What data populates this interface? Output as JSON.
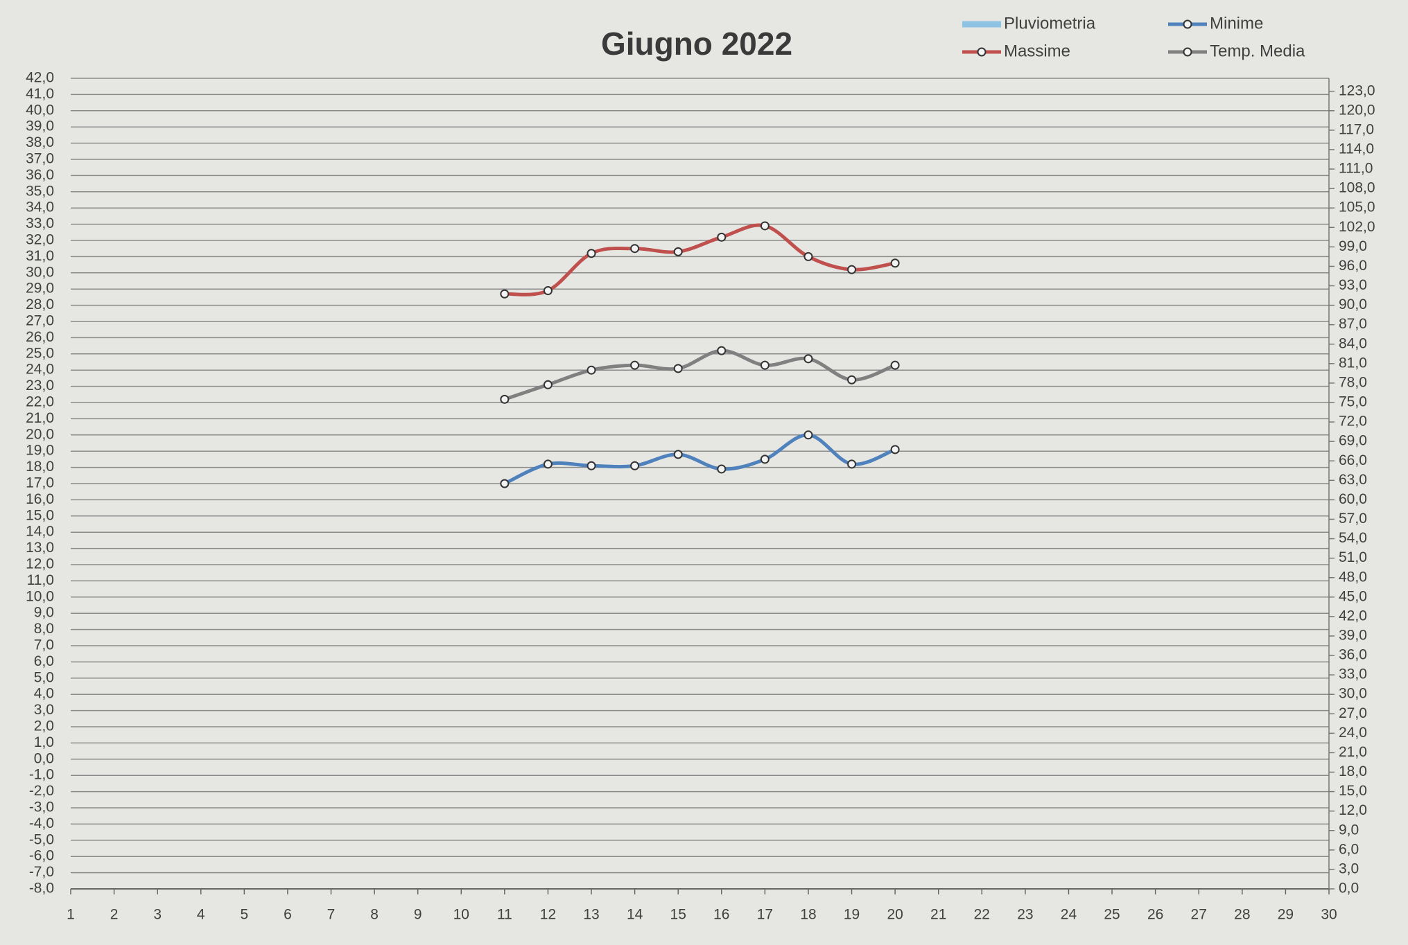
{
  "chart_data": {
    "type": "line",
    "title": "Giugno 2022",
    "categories": [
      1,
      2,
      3,
      4,
      5,
      6,
      7,
      8,
      9,
      10,
      11,
      12,
      13,
      14,
      15,
      16,
      17,
      18,
      19,
      20,
      21,
      22,
      23,
      24,
      25,
      26,
      27,
      28,
      29,
      30
    ],
    "series": [
      {
        "name": "Pluviometria",
        "color": "#8fc3e3",
        "axis": "y2",
        "marker": false,
        "values": [
          null,
          null,
          null,
          null,
          null,
          null,
          null,
          null,
          null,
          null,
          null,
          null,
          null,
          null,
          null,
          null,
          null,
          null,
          null,
          null,
          null,
          null,
          null,
          null,
          null,
          null,
          null,
          null,
          null,
          null
        ]
      },
      {
        "name": "Minime",
        "color": "#4f81bd",
        "marker": true,
        "values": [
          null,
          null,
          null,
          null,
          null,
          null,
          null,
          null,
          null,
          null,
          17.0,
          18.2,
          18.1,
          18.1,
          18.8,
          17.9,
          18.5,
          20.0,
          18.2,
          19.1,
          null,
          null,
          null,
          null,
          null,
          null,
          null,
          null,
          null,
          null
        ]
      },
      {
        "name": "Massime",
        "color": "#c0504d",
        "marker": true,
        "values": [
          null,
          null,
          null,
          null,
          null,
          null,
          null,
          null,
          null,
          null,
          28.7,
          28.9,
          31.2,
          31.5,
          31.3,
          32.2,
          32.9,
          31.0,
          30.2,
          30.6,
          null,
          null,
          null,
          null,
          null,
          null,
          null,
          null,
          null,
          null
        ]
      },
      {
        "name": "Temp. Media",
        "color": "#808080",
        "marker": true,
        "values": [
          null,
          null,
          null,
          null,
          null,
          null,
          null,
          null,
          null,
          null,
          22.2,
          23.1,
          24.0,
          24.3,
          24.1,
          25.2,
          24.3,
          24.7,
          23.4,
          24.3,
          null,
          null,
          null,
          null,
          null,
          null,
          null,
          null,
          null,
          null
        ]
      }
    ],
    "ylim": [
      -8,
      42
    ],
    "yticks": [
      {
        "value": -8,
        "label": "-8,0"
      },
      {
        "value": -7,
        "label": "-7,0"
      },
      {
        "value": -6,
        "label": "-6,0"
      },
      {
        "value": -5,
        "label": "-5,0"
      },
      {
        "value": -4,
        "label": "-4,0"
      },
      {
        "value": -3,
        "label": "-3,0"
      },
      {
        "value": -2,
        "label": "-2,0"
      },
      {
        "value": -1,
        "label": "-1,0"
      },
      {
        "value": 0,
        "label": "0,0"
      },
      {
        "value": 1,
        "label": "1,0"
      },
      {
        "value": 2,
        "label": "2,0"
      },
      {
        "value": 3,
        "label": "3,0"
      },
      {
        "value": 4,
        "label": "4,0"
      },
      {
        "value": 5,
        "label": "5,0"
      },
      {
        "value": 6,
        "label": "6,0"
      },
      {
        "value": 7,
        "label": "7,0"
      },
      {
        "value": 8,
        "label": "8,0"
      },
      {
        "value": 9,
        "label": "9,0"
      },
      {
        "value": 10,
        "label": "10,0"
      },
      {
        "value": 11,
        "label": "11,0"
      },
      {
        "value": 12,
        "label": "12,0"
      },
      {
        "value": 13,
        "label": "13,0"
      },
      {
        "value": 14,
        "label": "14,0"
      },
      {
        "value": 15,
        "label": "15,0"
      },
      {
        "value": 16,
        "label": "16,0"
      },
      {
        "value": 17,
        "label": "17,0"
      },
      {
        "value": 18,
        "label": "18,0"
      },
      {
        "value": 19,
        "label": "19,0"
      },
      {
        "value": 20,
        "label": "20,0"
      },
      {
        "value": 21,
        "label": "21,0"
      },
      {
        "value": 22,
        "label": "22,0"
      },
      {
        "value": 23,
        "label": "23,0"
      },
      {
        "value": 24,
        "label": "24,0"
      },
      {
        "value": 25,
        "label": "25,0"
      },
      {
        "value": 26,
        "label": "26,0"
      },
      {
        "value": 27,
        "label": "27,0"
      },
      {
        "value": 28,
        "label": "28,0"
      },
      {
        "value": 29,
        "label": "29,0"
      },
      {
        "value": 30,
        "label": "30,0"
      },
      {
        "value": 31,
        "label": "31,0"
      },
      {
        "value": 32,
        "label": "32,0"
      },
      {
        "value": 33,
        "label": "33,0"
      },
      {
        "value": 34,
        "label": "34,0"
      },
      {
        "value": 35,
        "label": "35,0"
      },
      {
        "value": 36,
        "label": "36,0"
      },
      {
        "value": 37,
        "label": "37,0"
      },
      {
        "value": 38,
        "label": "38,0"
      },
      {
        "value": 39,
        "label": "39,0"
      },
      {
        "value": 40,
        "label": "40,0"
      },
      {
        "value": 41,
        "label": "41,0"
      },
      {
        "value": 42,
        "label": "42,0"
      }
    ],
    "y2lim": [
      0,
      125
    ],
    "y2ticks": [
      {
        "value": 0,
        "label": "0,0"
      },
      {
        "value": 3,
        "label": "3,0"
      },
      {
        "value": 6,
        "label": "6,0"
      },
      {
        "value": 9,
        "label": "9,0"
      },
      {
        "value": 12,
        "label": "12,0"
      },
      {
        "value": 15,
        "label": "15,0"
      },
      {
        "value": 18,
        "label": "18,0"
      },
      {
        "value": 21,
        "label": "21,0"
      },
      {
        "value": 24,
        "label": "24,0"
      },
      {
        "value": 27,
        "label": "27,0"
      },
      {
        "value": 30,
        "label": "30,0"
      },
      {
        "value": 33,
        "label": "33,0"
      },
      {
        "value": 36,
        "label": "36,0"
      },
      {
        "value": 39,
        "label": "39,0"
      },
      {
        "value": 42,
        "label": "42,0"
      },
      {
        "value": 45,
        "label": "45,0"
      },
      {
        "value": 48,
        "label": "48,0"
      },
      {
        "value": 51,
        "label": "51,0"
      },
      {
        "value": 54,
        "label": "54,0"
      },
      {
        "value": 57,
        "label": "57,0"
      },
      {
        "value": 60,
        "label": "60,0"
      },
      {
        "value": 63,
        "label": "63,0"
      },
      {
        "value": 66,
        "label": "66,0"
      },
      {
        "value": 69,
        "label": "69,0"
      },
      {
        "value": 72,
        "label": "72,0"
      },
      {
        "value": 75,
        "label": "75,0"
      },
      {
        "value": 78,
        "label": "78,0"
      },
      {
        "value": 81,
        "label": "81,0"
      },
      {
        "value": 84,
        "label": "84,0"
      },
      {
        "value": 87,
        "label": "87,0"
      },
      {
        "value": 90,
        "label": "90,0"
      },
      {
        "value": 93,
        "label": "93,0"
      },
      {
        "value": 96,
        "label": "96,0"
      },
      {
        "value": 99,
        "label": "99,0"
      },
      {
        "value": 102,
        "label": "102,0"
      },
      {
        "value": 105,
        "label": "105,0"
      },
      {
        "value": 108,
        "label": "108,0"
      },
      {
        "value": 111,
        "label": "111,0"
      },
      {
        "value": 114,
        "label": "114,0"
      },
      {
        "value": 117,
        "label": "117,0"
      },
      {
        "value": 120,
        "label": "120,0"
      },
      {
        "value": 123,
        "label": "123,0"
      }
    ],
    "grid": true,
    "legend": "top-right"
  }
}
